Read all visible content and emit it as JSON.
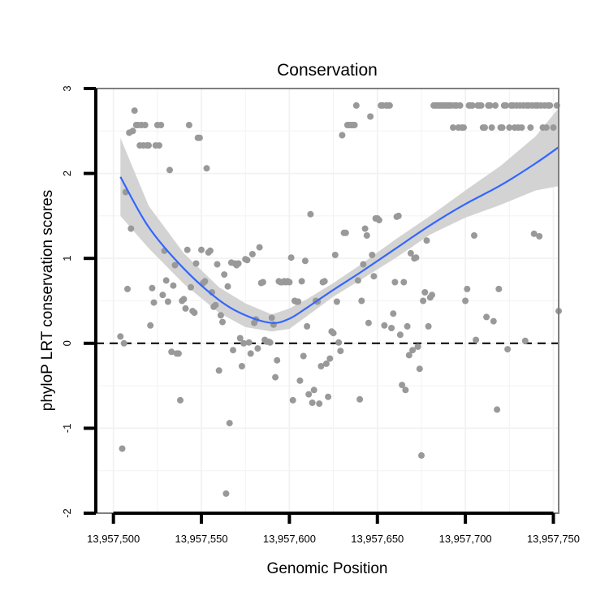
{
  "chart_data": {
    "type": "scatter",
    "title": "Conservation",
    "xlabel": "Genomic Position",
    "ylabel": "phyloP LRT conservation scores",
    "xlim": [
      13957490,
      13957753
    ],
    "ylim": [
      -2,
      3
    ],
    "x_ticks": [
      13957500,
      13957550,
      13957600,
      13957650,
      13957700,
      13957750
    ],
    "x_tick_labels": [
      "13,957,500",
      "13,957,550",
      "13,957,600",
      "13,957,650",
      "13,957,700",
      "13,957,750"
    ],
    "y_ticks": [
      -2,
      -1,
      0,
      1,
      2,
      3
    ],
    "y_tick_labels": [
      "-2",
      "-1",
      "0",
      "1",
      "2",
      "3"
    ],
    "grid": true,
    "reference_line": {
      "y": 0,
      "style": "dashed"
    },
    "colors": {
      "points": "#999999",
      "smooth": "#3366ff",
      "band": "#d3d3d3",
      "panel_border": "#7f7f7f",
      "grid": "#f2f2f2"
    },
    "series": [
      {
        "name": "scores",
        "points": [
          [
            13957504,
            0.08
          ],
          [
            13957505,
            -1.24
          ],
          [
            13957506,
            0.0
          ],
          [
            13957507,
            1.78
          ],
          [
            13957508,
            0.64
          ],
          [
            13957509,
            2.48
          ],
          [
            13957510,
            1.35
          ],
          [
            13957511,
            2.5
          ],
          [
            13957512,
            2.74
          ],
          [
            13957513,
            2.57
          ],
          [
            13957514,
            2.57
          ],
          [
            13957515,
            2.33
          ],
          [
            13957516,
            2.57
          ],
          [
            13957517,
            2.33
          ],
          [
            13957518,
            2.57
          ],
          [
            13957519,
            2.33
          ],
          [
            13957520,
            2.33
          ],
          [
            13957521,
            0.21
          ],
          [
            13957522,
            0.65
          ],
          [
            13957523,
            0.48
          ],
          [
            13957524,
            2.33
          ],
          [
            13957525,
            2.57
          ],
          [
            13957526,
            2.33
          ],
          [
            13957527,
            2.57
          ],
          [
            13957528,
            0.57
          ],
          [
            13957529,
            1.09
          ],
          [
            13957530,
            0.74
          ],
          [
            13957531,
            0.49
          ],
          [
            13957532,
            2.04
          ],
          [
            13957533,
            -0.1
          ],
          [
            13957534,
            0.68
          ],
          [
            13957535,
            0.92
          ],
          [
            13957536,
            -0.12
          ],
          [
            13957537,
            -0.12
          ],
          [
            13957538,
            -0.67
          ],
          [
            13957539,
            0.5
          ],
          [
            13957540,
            0.52
          ],
          [
            13957541,
            0.41
          ],
          [
            13957542,
            1.1
          ],
          [
            13957543,
            2.57
          ],
          [
            13957544,
            0.66
          ],
          [
            13957545,
            0.38
          ],
          [
            13957546,
            0.36
          ],
          [
            13957547,
            0.94
          ],
          [
            13957548,
            2.42
          ],
          [
            13957549,
            2.42
          ],
          [
            13957550,
            1.1
          ],
          [
            13957551,
            0.71
          ],
          [
            13957552,
            0.73
          ],
          [
            13957553,
            2.06
          ],
          [
            13957554,
            1.07
          ],
          [
            13957555,
            1.09
          ],
          [
            13957556,
            0.6
          ],
          [
            13957557,
            0.43
          ],
          [
            13957558,
            0.45
          ],
          [
            13957559,
            0.93
          ],
          [
            13957560,
            -0.32
          ],
          [
            13957561,
            0.33
          ],
          [
            13957562,
            0.25
          ],
          [
            13957563,
            0.81
          ],
          [
            13957564,
            -1.77
          ],
          [
            13957565,
            0.67
          ],
          [
            13957566,
            -0.94
          ],
          [
            13957567,
            0.95
          ],
          [
            13957568,
            -0.08
          ],
          [
            13957569,
            0.94
          ],
          [
            13957570,
            0.92
          ],
          [
            13957571,
            0.94
          ],
          [
            13957572,
            0.06
          ],
          [
            13957573,
            -0.27
          ],
          [
            13957574,
            0.0
          ],
          [
            13957575,
            0.99
          ],
          [
            13957576,
            0.98
          ],
          [
            13957577,
            0.01
          ],
          [
            13957578,
            -0.12
          ],
          [
            13957579,
            1.05
          ],
          [
            13957580,
            0.24
          ],
          [
            13957581,
            0.28
          ],
          [
            13957582,
            -0.06
          ],
          [
            13957583,
            1.13
          ],
          [
            13957584,
            0.71
          ],
          [
            13957585,
            0.72
          ],
          [
            13957586,
            0.04
          ],
          [
            13957587,
            0.02
          ],
          [
            13957588,
            0.02
          ],
          [
            13957589,
            0.01
          ],
          [
            13957590,
            0.3
          ],
          [
            13957591,
            0.22
          ],
          [
            13957592,
            -0.4
          ],
          [
            13957593,
            -0.2
          ],
          [
            13957594,
            0.73
          ],
          [
            13957595,
            0.72
          ],
          [
            13957596,
            0.72
          ],
          [
            13957597,
            0.73
          ],
          [
            13957598,
            0.72
          ],
          [
            13957599,
            0.73
          ],
          [
            13957600,
            0.72
          ],
          [
            13957601,
            1.01
          ],
          [
            13957602,
            -0.67
          ],
          [
            13957603,
            0.5
          ],
          [
            13957604,
            0.49
          ],
          [
            13957605,
            0.49
          ],
          [
            13957606,
            -0.44
          ],
          [
            13957607,
            0.73
          ],
          [
            13957608,
            -0.15
          ],
          [
            13957609,
            0.97
          ],
          [
            13957610,
            0.2
          ],
          [
            13957611,
            -0.6
          ],
          [
            13957612,
            1.52
          ],
          [
            13957613,
            -0.7
          ],
          [
            13957614,
            -0.55
          ],
          [
            13957615,
            0.5
          ],
          [
            13957616,
            0.49
          ],
          [
            13957617,
            -0.71
          ],
          [
            13957618,
            -0.27
          ],
          [
            13957619,
            0.72
          ],
          [
            13957620,
            0.73
          ],
          [
            13957621,
            -0.24
          ],
          [
            13957622,
            -0.63
          ],
          [
            13957623,
            -0.18
          ],
          [
            13957624,
            0.14
          ],
          [
            13957625,
            0.12
          ],
          [
            13957626,
            1.04
          ],
          [
            13957627,
            0.49
          ],
          [
            13957628,
            0.01
          ],
          [
            13957629,
            -0.09
          ],
          [
            13957630,
            2.45
          ],
          [
            13957631,
            1.3
          ],
          [
            13957632,
            1.3
          ],
          [
            13957633,
            2.57
          ],
          [
            13957634,
            2.57
          ],
          [
            13957635,
            2.57
          ],
          [
            13957636,
            2.57
          ],
          [
            13957637,
            2.57
          ],
          [
            13957638,
            2.8
          ],
          [
            13957639,
            0.74
          ],
          [
            13957640,
            -0.66
          ],
          [
            13957641,
            0.5
          ],
          [
            13957642,
            0.93
          ],
          [
            13957643,
            1.35
          ],
          [
            13957644,
            1.27
          ],
          [
            13957645,
            0.24
          ],
          [
            13957646,
            2.67
          ],
          [
            13957647,
            1.04
          ],
          [
            13957648,
            0.79
          ],
          [
            13957649,
            1.47
          ],
          [
            13957650,
            1.47
          ],
          [
            13957651,
            1.45
          ],
          [
            13957652,
            2.8
          ],
          [
            13957653,
            2.8
          ],
          [
            13957654,
            0.21
          ],
          [
            13957655,
            2.8
          ],
          [
            13957656,
            2.8
          ],
          [
            13957657,
            2.8
          ],
          [
            13957658,
            0.18
          ],
          [
            13957659,
            0.35
          ],
          [
            13957660,
            0.72
          ],
          [
            13957661,
            1.49
          ],
          [
            13957662,
            1.5
          ],
          [
            13957663,
            0.1
          ],
          [
            13957664,
            -0.49
          ],
          [
            13957665,
            0.72
          ],
          [
            13957666,
            -0.55
          ],
          [
            13957667,
            0.2
          ],
          [
            13957668,
            -0.14
          ],
          [
            13957669,
            1.06
          ],
          [
            13957670,
            -0.08
          ],
          [
            13957671,
            1.0
          ],
          [
            13957672,
            1.01
          ],
          [
            13957673,
            -0.04
          ],
          [
            13957674,
            -0.3
          ],
          [
            13957675,
            -1.32
          ],
          [
            13957676,
            0.5
          ],
          [
            13957677,
            0.6
          ],
          [
            13957678,
            1.21
          ],
          [
            13957679,
            0.2
          ],
          [
            13957680,
            0.54
          ],
          [
            13957681,
            0.57
          ],
          [
            13957682,
            2.8
          ],
          [
            13957683,
            2.8
          ],
          [
            13957684,
            2.8
          ],
          [
            13957685,
            2.8
          ],
          [
            13957686,
            2.8
          ],
          [
            13957687,
            2.8
          ],
          [
            13957688,
            2.8
          ],
          [
            13957689,
            2.8
          ],
          [
            13957690,
            2.8
          ],
          [
            13957691,
            2.8
          ],
          [
            13957692,
            2.8
          ],
          [
            13957693,
            2.54
          ],
          [
            13957694,
            2.8
          ],
          [
            13957695,
            2.8
          ],
          [
            13957696,
            2.54
          ],
          [
            13957697,
            2.8
          ],
          [
            13957698,
            2.54
          ],
          [
            13957699,
            2.54
          ],
          [
            13957700,
            0.5
          ],
          [
            13957701,
            0.64
          ],
          [
            13957702,
            2.8
          ],
          [
            13957703,
            2.8
          ],
          [
            13957704,
            2.8
          ],
          [
            13957705,
            1.27
          ],
          [
            13957706,
            0.04
          ],
          [
            13957707,
            2.8
          ],
          [
            13957708,
            2.8
          ],
          [
            13957709,
            2.8
          ],
          [
            13957710,
            2.54
          ],
          [
            13957711,
            2.54
          ],
          [
            13957712,
            0.31
          ],
          [
            13957713,
            2.8
          ],
          [
            13957714,
            2.8
          ],
          [
            13957715,
            2.54
          ],
          [
            13957716,
            0.26
          ],
          [
            13957717,
            2.8
          ],
          [
            13957718,
            -0.78
          ],
          [
            13957719,
            0.64
          ],
          [
            13957720,
            2.54
          ],
          [
            13957721,
            2.54
          ],
          [
            13957722,
            2.8
          ],
          [
            13957723,
            2.8
          ],
          [
            13957724,
            -0.07
          ],
          [
            13957725,
            2.54
          ],
          [
            13957726,
            2.8
          ],
          [
            13957727,
            2.8
          ],
          [
            13957728,
            2.54
          ],
          [
            13957729,
            2.8
          ],
          [
            13957730,
            2.54
          ],
          [
            13957731,
            2.8
          ],
          [
            13957732,
            2.54
          ],
          [
            13957733,
            2.8
          ],
          [
            13957734,
            0.03
          ],
          [
            13957735,
            2.8
          ],
          [
            13957736,
            2.8
          ],
          [
            13957737,
            2.54
          ],
          [
            13957738,
            2.8
          ],
          [
            13957739,
            1.29
          ],
          [
            13957740,
            2.8
          ],
          [
            13957741,
            2.8
          ],
          [
            13957742,
            1.26
          ],
          [
            13957743,
            2.8
          ],
          [
            13957744,
            2.54
          ],
          [
            13957745,
            2.8
          ],
          [
            13957746,
            2.54
          ],
          [
            13957747,
            2.8
          ],
          [
            13957748,
            2.8
          ],
          [
            13957750,
            2.54
          ],
          [
            13957752,
            2.8
          ],
          [
            13957753,
            0.38
          ]
        ]
      }
    ],
    "smooth": {
      "name": "loess fit",
      "x": [
        13957504,
        13957520,
        13957540,
        13957560,
        13957575,
        13957590,
        13957600,
        13957610,
        13957625,
        13957640,
        13957660,
        13957680,
        13957700,
        13957720,
        13957740,
        13957753
      ],
      "y": [
        1.96,
        1.37,
        0.88,
        0.51,
        0.33,
        0.24,
        0.29,
        0.42,
        0.63,
        0.83,
        1.11,
        1.39,
        1.64,
        1.86,
        2.12,
        2.31
      ],
      "lower": [
        1.5,
        1.12,
        0.7,
        0.36,
        0.19,
        0.14,
        0.17,
        0.32,
        0.55,
        0.74,
        1.0,
        1.28,
        1.48,
        1.63,
        1.8,
        1.85
      ],
      "upper": [
        2.42,
        1.62,
        1.06,
        0.66,
        0.47,
        0.34,
        0.41,
        0.52,
        0.71,
        0.92,
        1.22,
        1.5,
        1.8,
        2.09,
        2.44,
        2.77
      ]
    }
  }
}
